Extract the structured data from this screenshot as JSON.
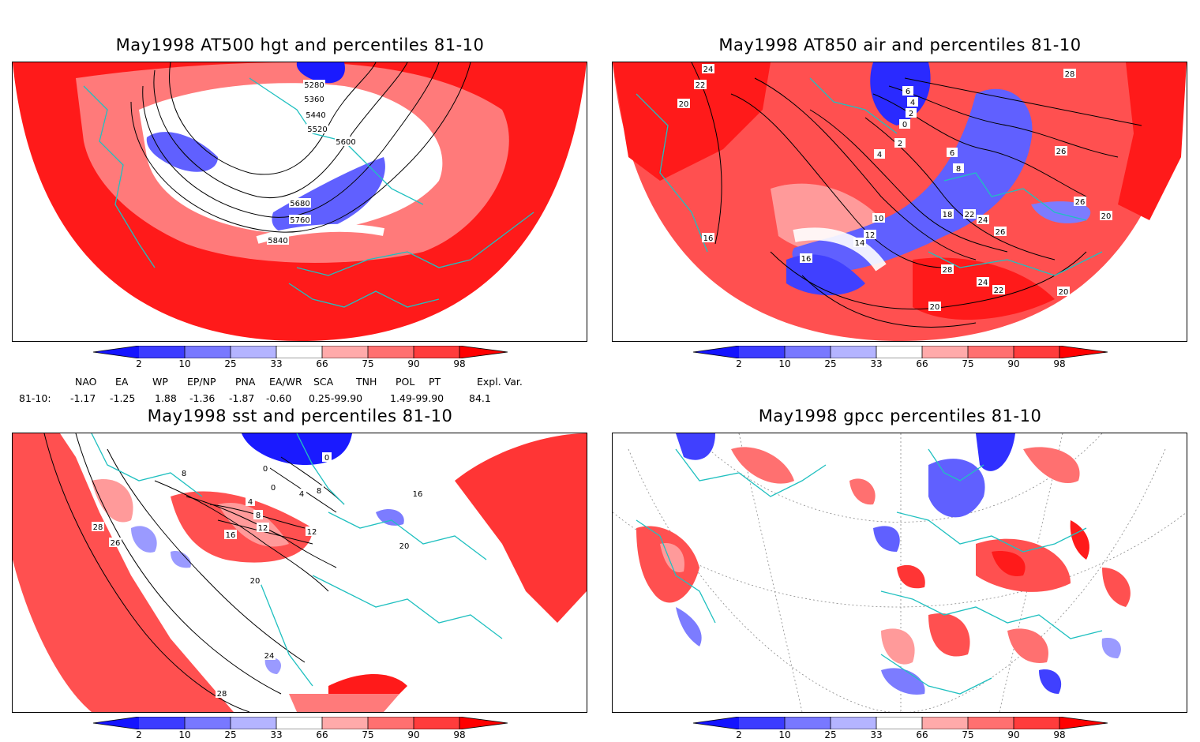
{
  "panels": [
    {
      "title": "May1998 AT500 hgt and percentiles 81-10",
      "contour_labels": [
        "5280",
        "5360",
        "5440",
        "5520",
        "5600",
        "5680",
        "5760",
        "5840"
      ]
    },
    {
      "title": "May1998 AT850 air and percentiles 81-10",
      "contour_labels": [
        "24",
        "22",
        "20",
        "16",
        "10",
        "12",
        "14",
        "16",
        "18",
        "22",
        "24",
        "26",
        "28",
        "24",
        "22",
        "20",
        "28",
        "26",
        "26",
        "20",
        "20",
        "4",
        "2",
        "0",
        "2",
        "4",
        "6",
        "8",
        "6"
      ]
    },
    {
      "title": "May1998 sst and percentiles 81-10",
      "contour_labels": [
        "8",
        "0",
        "0",
        "0",
        "4",
        "4",
        "8",
        "8",
        "12",
        "12",
        "16",
        "20",
        "24",
        "28",
        "28",
        "26",
        "20",
        "16"
      ]
    },
    {
      "title": "May1998 gpcc percentiles 81-10",
      "contour_labels": []
    }
  ],
  "colorbar": {
    "labels": [
      "2",
      "10",
      "25",
      "33",
      "66",
      "75",
      "90",
      "98"
    ],
    "colors": [
      "#1414ff",
      "#3c3cff",
      "#7878ff",
      "#b4b4ff",
      "#ffffff",
      "#ffaaaa",
      "#ff7070",
      "#ff3c3c",
      "#ff0000"
    ]
  },
  "indices": {
    "header": [
      "NAO",
      "EA",
      "WP",
      "EP/NP",
      "PNA",
      "EA/WR",
      "SCA",
      "TNH",
      "POL",
      "PT",
      "Expl. Var."
    ],
    "row_label": "81-10:",
    "values": [
      "-1.17",
      "-1.25",
      "1.88",
      "-1.36",
      "-1.87",
      "-0.60",
      "0.25-99.90",
      "",
      "1.49-99.90",
      "",
      "84.1"
    ]
  },
  "colors": {
    "coast": "#20c0c0",
    "red": "#ff1a1a",
    "red_mid": "#ff5050",
    "red_light": "#ff9a9a",
    "blue": "#3c3cff",
    "blue_light": "#9a9aff"
  }
}
